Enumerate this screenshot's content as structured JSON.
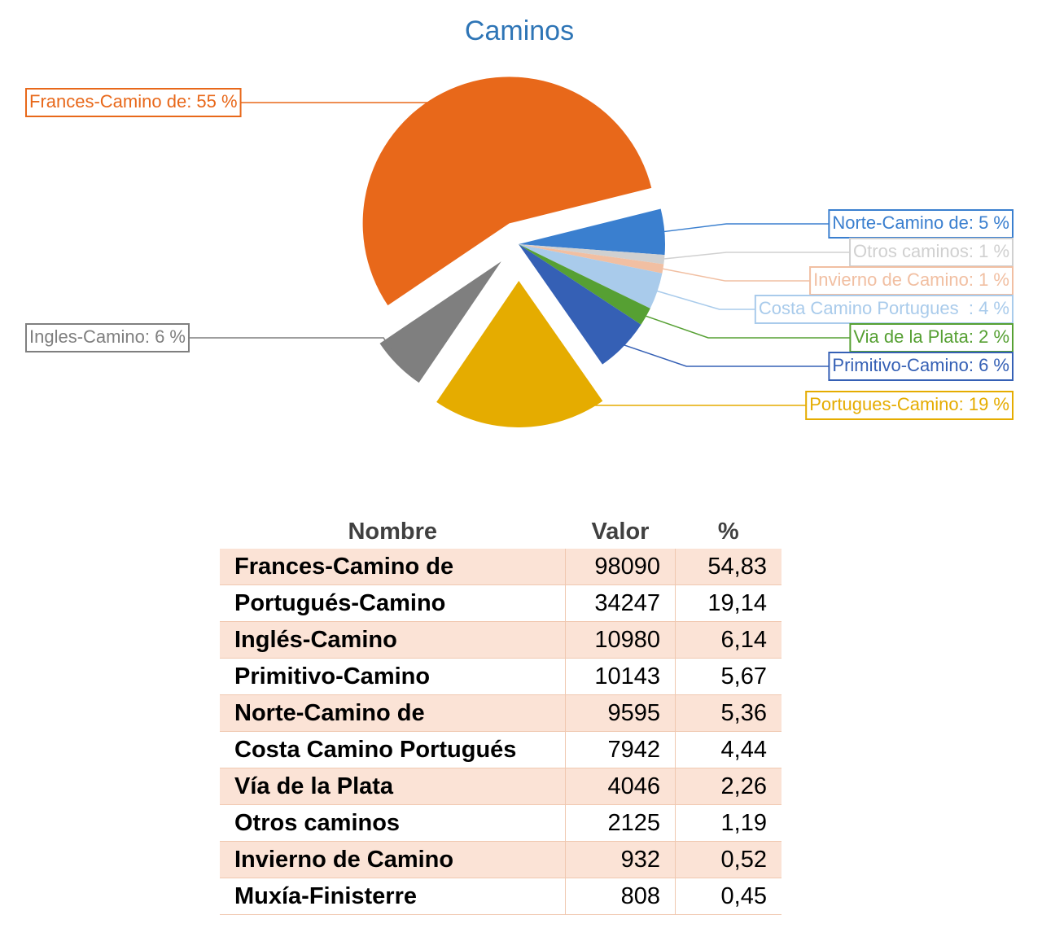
{
  "chart_data": {
    "type": "pie",
    "title": "Caminos",
    "values": [
      5,
      1,
      1,
      4,
      2,
      6,
      19,
      6,
      55
    ],
    "value_labels": [
      "Norte-Camino de: 5 %",
      "Otros caminos: 1 %",
      "Invierno de Camino: 1 %",
      "Costa Camino Portugues  : 4 %",
      "Via de la Plata: 2 %",
      "Primitivo-Camino: 6 %",
      "Portugues-Camino: 19 %",
      "Ingles-Camino: 6 %",
      "Frances-Camino de: 55 %"
    ],
    "colors": [
      "#3a7fcf",
      "#d0d0d0",
      "#f1bfa2",
      "#a9cbeb",
      "#56a033",
      "#3560b5",
      "#e5ac00",
      "#7f7f7f",
      "#e8681a"
    ]
  },
  "table": {
    "header": [
      "Nombre",
      "Valor",
      "%"
    ],
    "rows": [
      [
        "Frances-Camino de",
        98090,
        "54,83"
      ],
      [
        "Portugués-Camino",
        34247,
        "19,14"
      ],
      [
        "Inglés-Camino",
        10980,
        "6,14"
      ],
      [
        "Primitivo-Camino",
        10143,
        "5,67"
      ],
      [
        "Norte-Camino de",
        9595,
        "5,36"
      ],
      [
        "Costa Camino Portugués",
        7942,
        "4,44"
      ],
      [
        "Vía de la Plata",
        4046,
        "2,26"
      ],
      [
        "Otros caminos",
        2125,
        "1,19"
      ],
      [
        "Invierno de Camino",
        932,
        "0,52"
      ],
      [
        "Muxía-Finisterre",
        808,
        "0,45"
      ]
    ]
  }
}
